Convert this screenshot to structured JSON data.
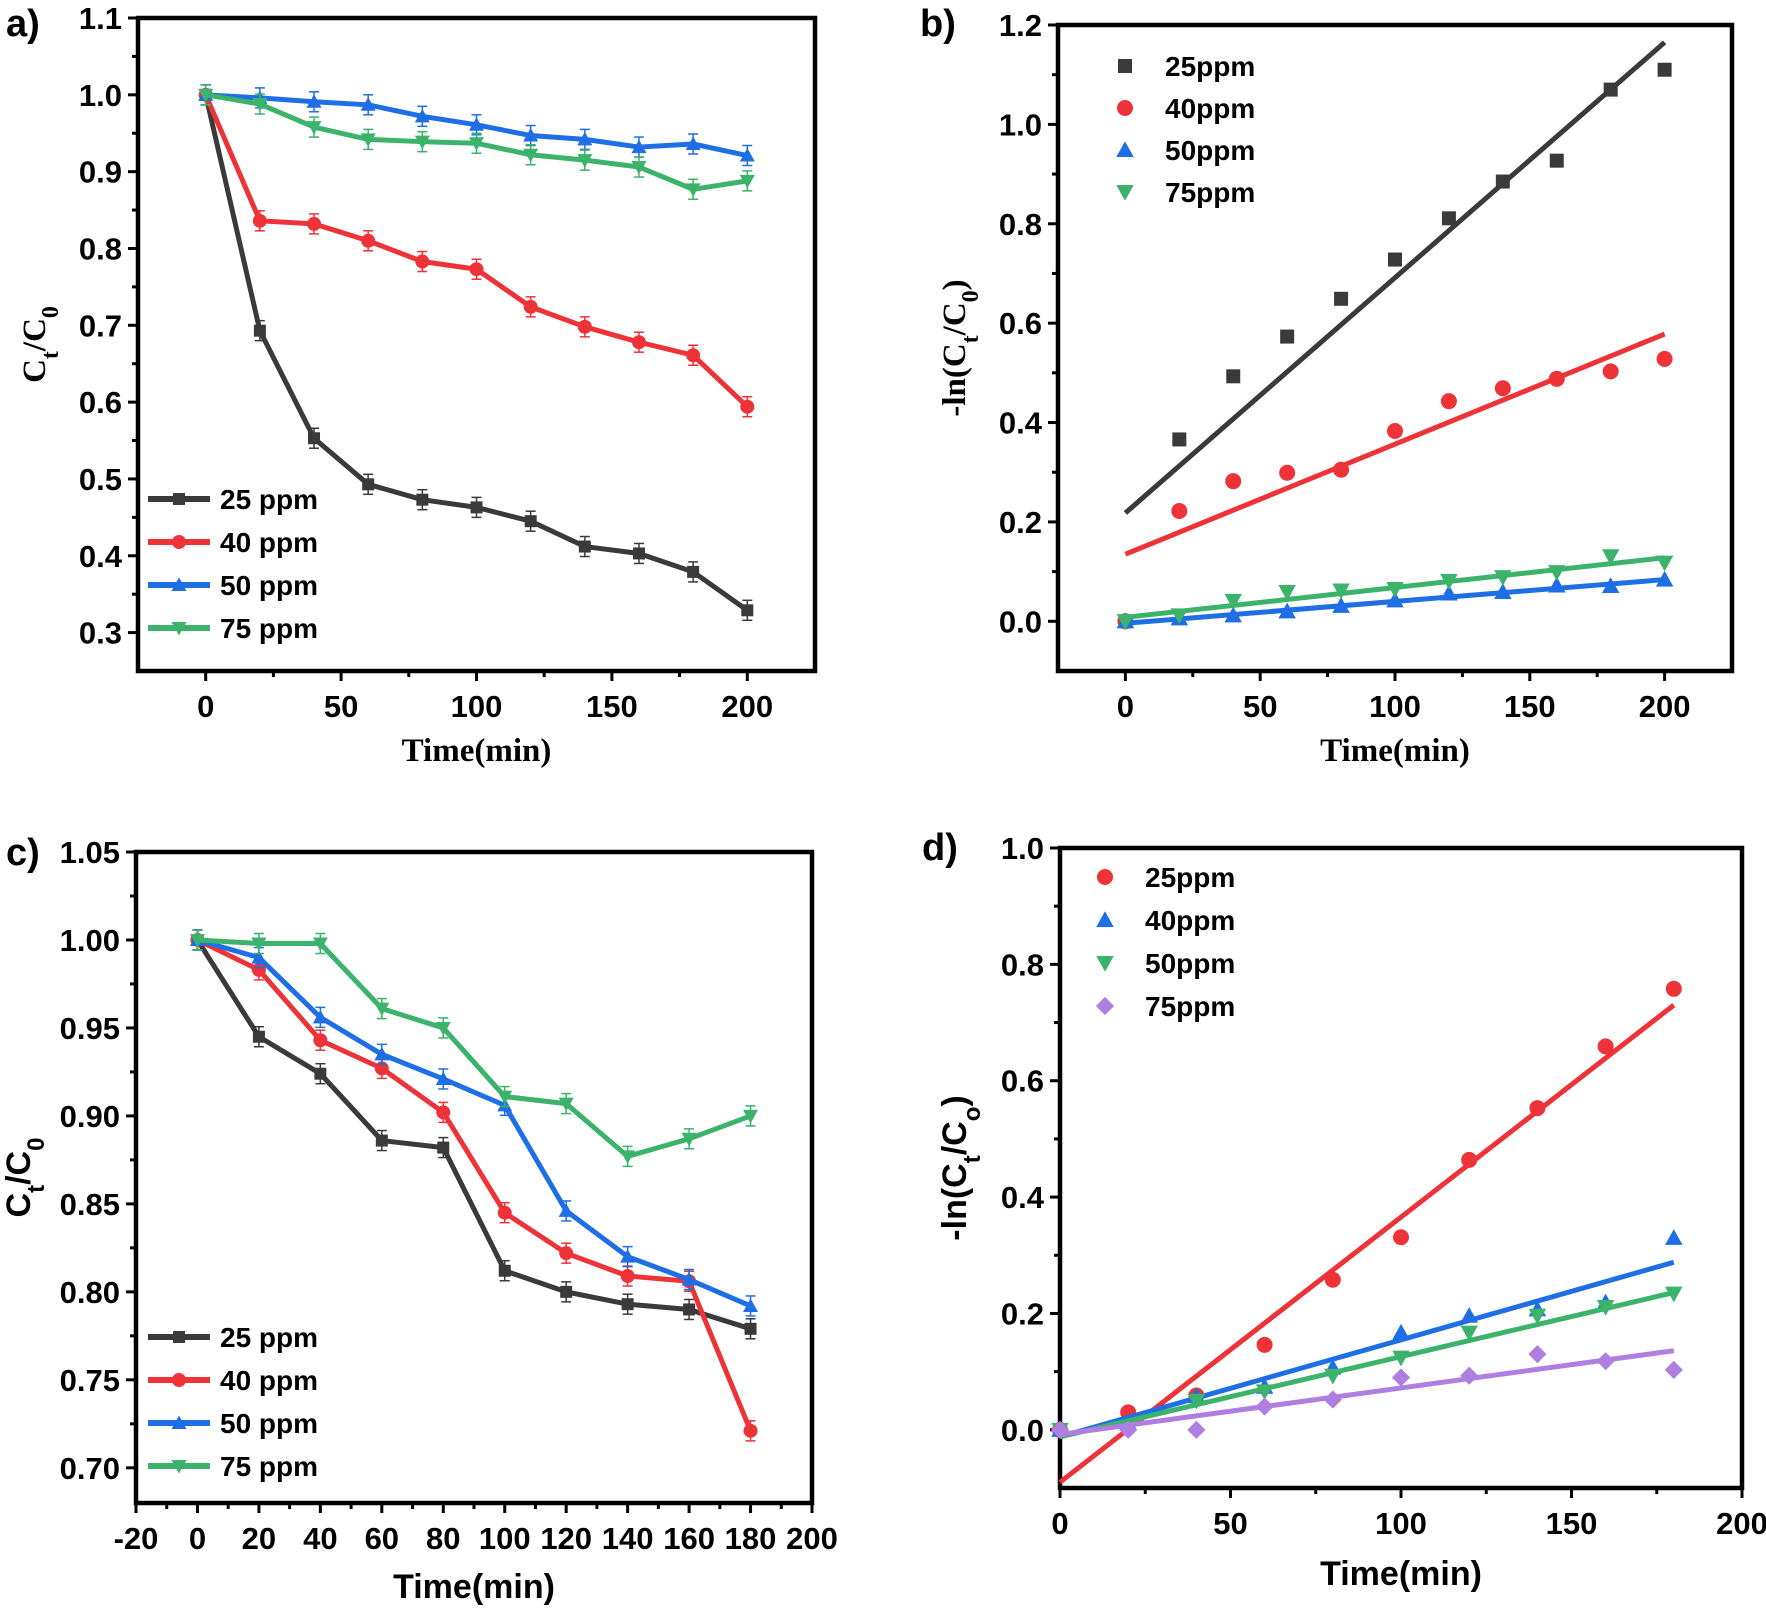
{
  "colors": {
    "grey": "#3a3a3a",
    "red": "#ee3338",
    "blue": "#1e6ee6",
    "green": "#3bb36a",
    "purple": "#b07ee0"
  },
  "chart_data": [
    {
      "panel": "a)",
      "type": "line",
      "xlabel": "Time(min)",
      "ylabel_main": "C",
      "ylabel_sub1": "t",
      "ylabel_mid": "/C",
      "ylabel_sub2": "0",
      "xlim": [
        -25,
        225
      ],
      "ylim": [
        0.25,
        1.1
      ],
      "xticks": [
        0,
        50,
        100,
        150,
        200
      ],
      "xtick_labels": [
        "0",
        "50",
        "100",
        "150",
        "200"
      ],
      "yticks": [
        0.3,
        0.4,
        0.5,
        0.6,
        0.7,
        0.8,
        0.9,
        1.0,
        1.1
      ],
      "ytick_labels": [
        "0.3",
        "0.4",
        "0.5",
        "0.6",
        "0.7",
        "0.8",
        "0.9",
        "1.0",
        "1.1"
      ],
      "legend_position": "bottom-left",
      "x": [
        0,
        20,
        40,
        60,
        80,
        100,
        120,
        140,
        160,
        180,
        200
      ],
      "series": [
        {
          "name": "25 ppm",
          "color": "grey",
          "marker": "square",
          "values": [
            1.0,
            0.693,
            0.553,
            0.493,
            0.473,
            0.463,
            0.445,
            0.412,
            0.403,
            0.379,
            0.329
          ]
        },
        {
          "name": "40 ppm",
          "color": "red",
          "marker": "circle",
          "values": [
            1.0,
            0.836,
            0.832,
            0.81,
            0.783,
            0.773,
            0.724,
            0.698,
            0.678,
            0.661,
            0.594
          ]
        },
        {
          "name": "50 ppm",
          "color": "blue",
          "marker": "triangle-up",
          "values": [
            1.0,
            0.996,
            0.991,
            0.987,
            0.972,
            0.961,
            0.947,
            0.942,
            0.932,
            0.936,
            0.921
          ]
        },
        {
          "name": "75 ppm",
          "color": "green",
          "marker": "triangle-down",
          "values": [
            1.0,
            0.988,
            0.958,
            0.942,
            0.939,
            0.937,
            0.922,
            0.915,
            0.906,
            0.877,
            0.888
          ]
        }
      ]
    },
    {
      "panel": "b)",
      "type": "scatter",
      "xlabel": "Time(min)",
      "ylabel_main": "-ln(C",
      "ylabel_sub1": "t",
      "ylabel_mid": "/C",
      "ylabel_sub2": "0",
      "ylabel_end": ")",
      "xlim": [
        -25,
        225
      ],
      "ylim": [
        -0.1,
        1.2
      ],
      "xticks": [
        0,
        50,
        100,
        150,
        200
      ],
      "xtick_labels": [
        "0",
        "50",
        "100",
        "150",
        "200"
      ],
      "yticks": [
        0.0,
        0.2,
        0.4,
        0.6,
        0.8,
        1.0,
        1.2
      ],
      "ytick_labels": [
        "0.0",
        "0.2",
        "0.4",
        "0.6",
        "0.8",
        "1.0",
        "1.2"
      ],
      "legend_position": "top-left",
      "x": [
        0,
        20,
        40,
        60,
        80,
        100,
        120,
        140,
        160,
        180,
        200
      ],
      "series": [
        {
          "name": "25ppm",
          "color": "grey",
          "marker": "square",
          "values": [
            0.0,
            0.366,
            0.493,
            0.573,
            0.649,
            0.728,
            0.811,
            0.885,
            0.927,
            1.07,
            1.11
          ],
          "fit": [
            0.218,
            1.165
          ]
        },
        {
          "name": "40ppm",
          "color": "red",
          "marker": "circle",
          "values": [
            0.0,
            0.222,
            0.282,
            0.299,
            0.305,
            0.383,
            0.443,
            0.469,
            0.488,
            0.503,
            0.528
          ],
          "fit": [
            0.135,
            0.578
          ]
        },
        {
          "name": "50ppm",
          "color": "blue",
          "marker": "triangle-up",
          "values": [
            0.0,
            0.006,
            0.012,
            0.02,
            0.031,
            0.042,
            0.056,
            0.059,
            0.072,
            0.071,
            0.084
          ],
          "fit": [
            -0.004,
            0.084
          ]
        },
        {
          "name": "75ppm",
          "color": "green",
          "marker": "triangle-down",
          "values": [
            0.0,
            0.012,
            0.041,
            0.059,
            0.062,
            0.065,
            0.081,
            0.089,
            0.099,
            0.131,
            0.118
          ],
          "fit": [
            0.008,
            0.128
          ]
        }
      ]
    },
    {
      "panel": "c)",
      "type": "line",
      "xlabel": "Time(min)",
      "ylabel_main": "C",
      "ylabel_sub1": "t",
      "ylabel_mid": "/C",
      "ylabel_sub2": "0",
      "xlim": [
        -20,
        200
      ],
      "ylim": [
        0.68,
        1.05
      ],
      "xticks": [
        -20,
        0,
        20,
        40,
        60,
        80,
        100,
        120,
        140,
        160,
        180,
        200
      ],
      "xtick_labels": [
        "-20",
        "0",
        "20",
        "40",
        "60",
        "80",
        "100",
        "120",
        "140",
        "160",
        "180",
        "200"
      ],
      "yticks": [
        0.7,
        0.75,
        0.8,
        0.85,
        0.9,
        0.95,
        1.0,
        1.05
      ],
      "ytick_labels": [
        "0.70",
        "0.75",
        "0.80",
        "0.85",
        "0.90",
        "0.95",
        "1.00",
        "1.05"
      ],
      "legend_position": "bottom-left",
      "x": [
        0,
        20,
        40,
        60,
        80,
        100,
        120,
        140,
        160,
        180
      ],
      "series": [
        {
          "name": "25 ppm",
          "color": "grey",
          "marker": "square",
          "values": [
            1.0,
            0.945,
            0.924,
            0.886,
            0.882,
            0.812,
            0.8,
            0.793,
            0.79,
            0.779
          ]
        },
        {
          "name": "40 ppm",
          "color": "red",
          "marker": "circle",
          "values": [
            1.0,
            0.983,
            0.943,
            0.927,
            0.902,
            0.845,
            0.822,
            0.809,
            0.806,
            0.721
          ]
        },
        {
          "name": "50 ppm",
          "color": "blue",
          "marker": "triangle-up",
          "values": [
            1.0,
            0.99,
            0.956,
            0.935,
            0.921,
            0.906,
            0.846,
            0.82,
            0.807,
            0.792
          ]
        },
        {
          "name": "75 ppm",
          "color": "green",
          "marker": "triangle-down",
          "values": [
            1.0,
            0.998,
            0.998,
            0.961,
            0.95,
            0.911,
            0.907,
            0.877,
            0.887,
            0.9
          ]
        }
      ]
    },
    {
      "panel": "d)",
      "type": "scatter",
      "xlabel": "Time(min)",
      "ylabel_main": "-ln(C",
      "ylabel_sub1": "t",
      "ylabel_mid": "/C",
      "ylabel_sub2": "o",
      "ylabel_end": ")",
      "xlim": [
        0,
        200
      ],
      "ylim": [
        -0.1,
        1.0
      ],
      "xticks": [
        0,
        50,
        100,
        150,
        200
      ],
      "xtick_labels": [
        "0",
        "50",
        "100",
        "150",
        "200"
      ],
      "yticks": [
        0.0,
        0.2,
        0.4,
        0.6,
        0.8,
        1.0
      ],
      "ytick_labels": [
        "0.0",
        "0.2",
        "0.4",
        "0.6",
        "0.8",
        "1.0"
      ],
      "legend_position": "top-left",
      "x": [
        0,
        20,
        40,
        60,
        80,
        100,
        120,
        140,
        160,
        180
      ],
      "series": [
        {
          "name": "25ppm",
          "color": "red",
          "marker": "circle",
          "values": [
            0.0,
            0.03,
            0.059,
            0.146,
            0.258,
            0.331,
            0.464,
            0.553,
            0.659,
            0.758
          ],
          "fit": [
            -0.09,
            0.73
          ]
        },
        {
          "name": "40ppm",
          "color": "blue",
          "marker": "triangle-up",
          "values": [
            0.0,
            0.012,
            0.058,
            0.074,
            0.107,
            0.167,
            0.196,
            0.207,
            0.219,
            0.33
          ],
          "fit": [
            -0.012,
            0.288
          ]
        },
        {
          "name": "50ppm",
          "color": "green",
          "marker": "triangle-down",
          "values": [
            0.0,
            0.001,
            0.05,
            0.066,
            0.093,
            0.124,
            0.167,
            0.196,
            0.211,
            0.234
          ],
          "fit": [
            -0.012,
            0.236
          ]
        },
        {
          "name": "75ppm",
          "color": "purple",
          "marker": "diamond",
          "values": [
            0.0,
            0.0,
            0.0,
            0.04,
            0.052,
            0.09,
            0.093,
            0.13,
            0.118,
            0.103
          ],
          "fit": [
            -0.008,
            0.136
          ]
        }
      ]
    }
  ]
}
